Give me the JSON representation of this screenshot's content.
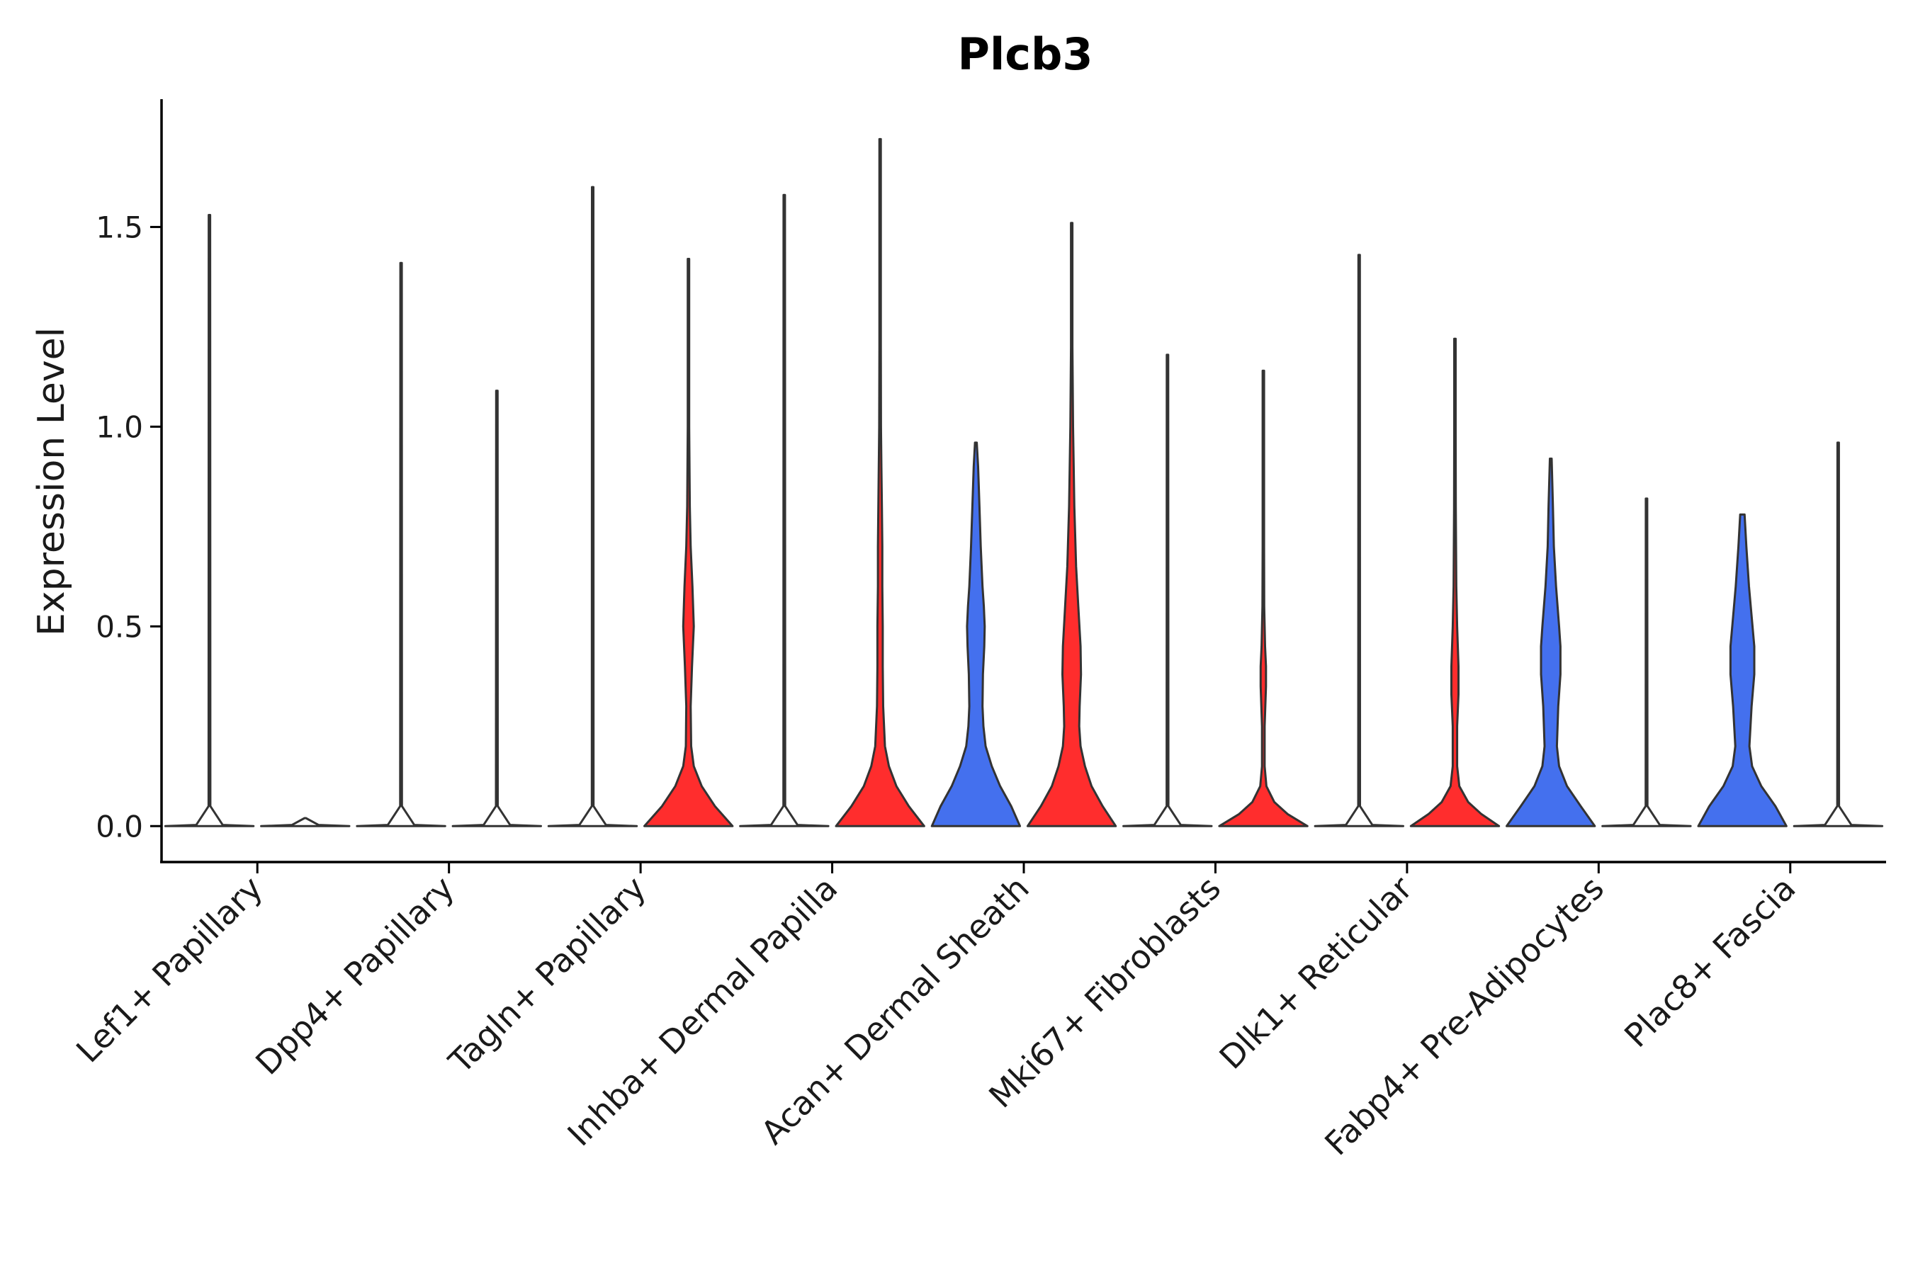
{
  "chart_data": {
    "type": "violin",
    "title": "Plcb3",
    "xlabel": "",
    "ylabel": "Expression Level",
    "ylim": [
      -0.09,
      1.82
    ],
    "yticks": [
      0.0,
      0.5,
      1.0,
      1.5
    ],
    "ytick_labels": [
      "0.0",
      "0.5",
      "1.0",
      "1.5"
    ],
    "categories": [
      "Lef1+ Papillary",
      "Dpp4+ Papillary",
      "Tagln+ Papillary",
      "Inhba+ Dermal Papilla",
      "Acan+ Dermal Sheath",
      "Mki67+ Fibroblasts",
      "Dlk1+ Reticular",
      "Fabp4+ Pre-Adipocytes",
      "Plac8+ Fascia"
    ],
    "colors": {
      "red": "#ff2d2d",
      "blue": "#4470ee",
      "outline": "#333333"
    },
    "series": [
      {
        "name": "left",
        "violins": [
          {
            "category": "Lef1+ Papillary",
            "max": 1.53,
            "color": "none",
            "density": [
              [
                0,
                1
              ],
              [
                0.003,
                0.3
              ],
              [
                0.05,
                0.02
              ],
              [
                1.53,
                0
              ]
            ]
          },
          {
            "category": "Dpp4+ Papillary",
            "max": 1.41,
            "color": "none",
            "density": [
              [
                0,
                1
              ],
              [
                0.003,
                0.3
              ],
              [
                0.05,
                0.02
              ],
              [
                1.41,
                0
              ]
            ]
          },
          {
            "category": "Tagln+ Papillary",
            "max": 1.6,
            "color": "none",
            "density": [
              [
                0,
                1
              ],
              [
                0.003,
                0.3
              ],
              [
                0.05,
                0.02
              ],
              [
                1.6,
                0
              ]
            ]
          },
          {
            "category": "Inhba+ Dermal Papilla",
            "max": 1.58,
            "color": "none",
            "density": [
              [
                0,
                1
              ],
              [
                0.003,
                0.3
              ],
              [
                0.05,
                0.02
              ],
              [
                1.58,
                0
              ]
            ]
          },
          {
            "category": "Acan+ Dermal Sheath",
            "max": 0.96,
            "color": "blue",
            "density": [
              [
                0,
                1
              ],
              [
                0.05,
                0.8
              ],
              [
                0.1,
                0.55
              ],
              [
                0.15,
                0.36
              ],
              [
                0.2,
                0.22
              ],
              [
                0.25,
                0.17
              ],
              [
                0.3,
                0.15
              ],
              [
                0.38,
                0.16
              ],
              [
                0.45,
                0.19
              ],
              [
                0.5,
                0.2
              ],
              [
                0.55,
                0.18
              ],
              [
                0.6,
                0.15
              ],
              [
                0.7,
                0.11
              ],
              [
                0.8,
                0.08
              ],
              [
                0.9,
                0.05
              ],
              [
                0.96,
                0.02
              ]
            ]
          },
          {
            "category": "Mki67+ Fibroblasts",
            "max": 1.18,
            "color": "none",
            "density": [
              [
                0,
                1
              ],
              [
                0.003,
                0.3
              ],
              [
                0.05,
                0.02
              ],
              [
                1.18,
                0
              ]
            ]
          },
          {
            "category": "Dlk1+ Reticular",
            "max": 1.43,
            "color": "none",
            "density": [
              [
                0,
                1
              ],
              [
                0.003,
                0.3
              ],
              [
                0.05,
                0.02
              ],
              [
                1.43,
                0
              ]
            ]
          },
          {
            "category": "Fabp4+ Pre-Adipocytes",
            "max": 0.92,
            "color": "blue",
            "density": [
              [
                0,
                1
              ],
              [
                0.05,
                0.68
              ],
              [
                0.1,
                0.37
              ],
              [
                0.15,
                0.19
              ],
              [
                0.2,
                0.14
              ],
              [
                0.3,
                0.17
              ],
              [
                0.38,
                0.22
              ],
              [
                0.45,
                0.22
              ],
              [
                0.5,
                0.19
              ],
              [
                0.6,
                0.12
              ],
              [
                0.7,
                0.07
              ],
              [
                0.8,
                0.05
              ],
              [
                0.92,
                0.02
              ]
            ]
          },
          {
            "category": "Plac8+ Fascia",
            "max": 0.78,
            "color": "blue",
            "density": [
              [
                0,
                1
              ],
              [
                0.05,
                0.75
              ],
              [
                0.1,
                0.43
              ],
              [
                0.15,
                0.22
              ],
              [
                0.2,
                0.16
              ],
              [
                0.3,
                0.21
              ],
              [
                0.38,
                0.27
              ],
              [
                0.45,
                0.27
              ],
              [
                0.5,
                0.23
              ],
              [
                0.6,
                0.15
              ],
              [
                0.7,
                0.09
              ],
              [
                0.78,
                0.05
              ]
            ]
          }
        ]
      },
      {
        "name": "right",
        "violins": [
          {
            "category": "Lef1+ Papillary",
            "max": 0.0,
            "color": "none",
            "density": [
              [
                0,
                1
              ],
              [
                0.003,
                0.3
              ],
              [
                0.02,
                0
              ]
            ]
          },
          {
            "category": "Dpp4+ Papillary",
            "max": 1.09,
            "color": "none",
            "density": [
              [
                0,
                1
              ],
              [
                0.003,
                0.3
              ],
              [
                0.05,
                0.02
              ],
              [
                1.09,
                0
              ]
            ]
          },
          {
            "category": "Tagln+ Papillary",
            "max": 1.42,
            "color": "red",
            "density": [
              [
                0,
                1
              ],
              [
                0.05,
                0.6
              ],
              [
                0.1,
                0.3
              ],
              [
                0.15,
                0.12
              ],
              [
                0.2,
                0.06
              ],
              [
                0.3,
                0.05
              ],
              [
                0.4,
                0.08
              ],
              [
                0.5,
                0.12
              ],
              [
                0.6,
                0.09
              ],
              [
                0.7,
                0.05
              ],
              [
                0.8,
                0.03
              ],
              [
                1.0,
                0.01
              ],
              [
                1.42,
                0
              ]
            ]
          },
          {
            "category": "Inhba+ Dermal Papilla",
            "max": 1.72,
            "color": "red",
            "density": [
              [
                0,
                1
              ],
              [
                0.05,
                0.65
              ],
              [
                0.1,
                0.37
              ],
              [
                0.15,
                0.2
              ],
              [
                0.2,
                0.11
              ],
              [
                0.3,
                0.07
              ],
              [
                0.4,
                0.06
              ],
              [
                0.5,
                0.06
              ],
              [
                0.6,
                0.05
              ],
              [
                0.7,
                0.05
              ],
              [
                0.8,
                0.04
              ],
              [
                0.9,
                0.03
              ],
              [
                1.0,
                0.02
              ],
              [
                1.2,
                0.01
              ],
              [
                1.72,
                0
              ]
            ]
          },
          {
            "category": "Acan+ Dermal Sheath",
            "max": 1.51,
            "color": "red",
            "density": [
              [
                0,
                1
              ],
              [
                0.05,
                0.7
              ],
              [
                0.1,
                0.45
              ],
              [
                0.15,
                0.3
              ],
              [
                0.2,
                0.2
              ],
              [
                0.25,
                0.17
              ],
              [
                0.3,
                0.18
              ],
              [
                0.38,
                0.21
              ],
              [
                0.45,
                0.2
              ],
              [
                0.55,
                0.15
              ],
              [
                0.65,
                0.1
              ],
              [
                0.8,
                0.06
              ],
              [
                1.0,
                0.03
              ],
              [
                1.2,
                0.01
              ],
              [
                1.51,
                0
              ]
            ]
          },
          {
            "category": "Mki67+ Fibroblasts",
            "max": 1.14,
            "color": "red",
            "density": [
              [
                0,
                1
              ],
              [
                0.03,
                0.55
              ],
              [
                0.06,
                0.25
              ],
              [
                0.1,
                0.07
              ],
              [
                0.15,
                0.03
              ],
              [
                0.25,
                0.03
              ],
              [
                0.35,
                0.06
              ],
              [
                0.4,
                0.06
              ],
              [
                0.45,
                0.04
              ],
              [
                0.55,
                0.02
              ],
              [
                0.7,
                0.01
              ],
              [
                1.14,
                0
              ]
            ]
          },
          {
            "category": "Dlk1+ Reticular",
            "max": 1.22,
            "color": "red",
            "density": [
              [
                0,
                1
              ],
              [
                0.03,
                0.6
              ],
              [
                0.06,
                0.3
              ],
              [
                0.1,
                0.1
              ],
              [
                0.15,
                0.05
              ],
              [
                0.25,
                0.05
              ],
              [
                0.33,
                0.08
              ],
              [
                0.4,
                0.08
              ],
              [
                0.5,
                0.05
              ],
              [
                0.6,
                0.03
              ],
              [
                0.8,
                0.02
              ],
              [
                1.0,
                0.01
              ],
              [
                1.22,
                0
              ]
            ]
          },
          {
            "category": "Fabp4+ Pre-Adipocytes",
            "max": 0.82,
            "color": "none",
            "density": [
              [
                0,
                1
              ],
              [
                0.003,
                0.3
              ],
              [
                0.05,
                0.02
              ],
              [
                0.82,
                0
              ]
            ]
          },
          {
            "category": "Plac8+ Fascia",
            "max": 0.96,
            "color": "none",
            "density": [
              [
                0,
                1
              ],
              [
                0.003,
                0.3
              ],
              [
                0.05,
                0.02
              ],
              [
                0.96,
                0
              ]
            ]
          }
        ]
      }
    ]
  }
}
